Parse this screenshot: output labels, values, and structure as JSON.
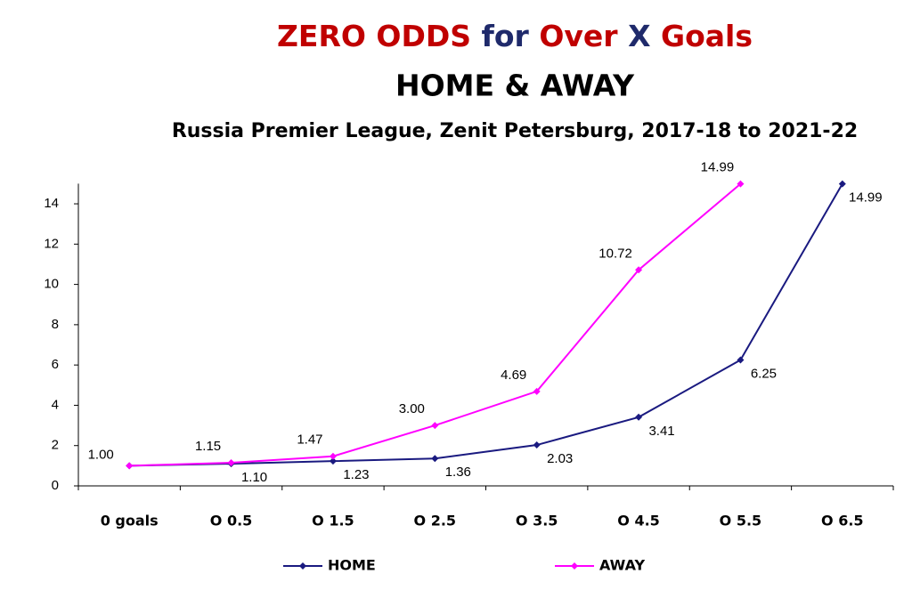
{
  "chart_data": {
    "type": "line",
    "title": [
      {
        "text": "ZERO ODDS",
        "color": "#c00000"
      },
      {
        "text": "for",
        "color": "#1f2a6b"
      },
      {
        "text": "Over",
        "color": "#c00000"
      },
      {
        "text": "X",
        "color": "#1f2a6b"
      },
      {
        "text": "Goals",
        "color": "#c00000"
      }
    ],
    "title_line2": {
      "text": "HOME & AWAY",
      "color": "#1f2a6b"
    },
    "subtitle": "Russia Premier League, Zenit Petersburg, 2017-18 to 2021-22",
    "categories": [
      "0 goals",
      "O 0.5",
      "O 1.5",
      "O 2.5",
      "O 3.5",
      "O 4.5",
      "O 5.5",
      "O 6.5"
    ],
    "series": [
      {
        "name": "HOME",
        "color": "#1a1a80",
        "values": [
          1.0,
          1.1,
          1.23,
          1.36,
          2.03,
          3.41,
          6.25,
          14.99
        ],
        "value_labels": [
          "1.00",
          "1.10",
          "1.23",
          "1.36",
          "2.03",
          "3.41",
          "6.25",
          "14.99"
        ]
      },
      {
        "name": "AWAY",
        "color": "#ff00ff",
        "values": [
          1.0,
          1.15,
          1.47,
          3.0,
          4.69,
          10.72,
          14.99,
          null
        ],
        "value_labels": [
          null,
          "1.15",
          "1.47",
          "3.00",
          "4.69",
          "10.72",
          "14.99",
          null
        ]
      }
    ],
    "ylim": [
      0,
      15
    ],
    "yticks": [
      0,
      2,
      4,
      6,
      8,
      10,
      12,
      14
    ]
  }
}
